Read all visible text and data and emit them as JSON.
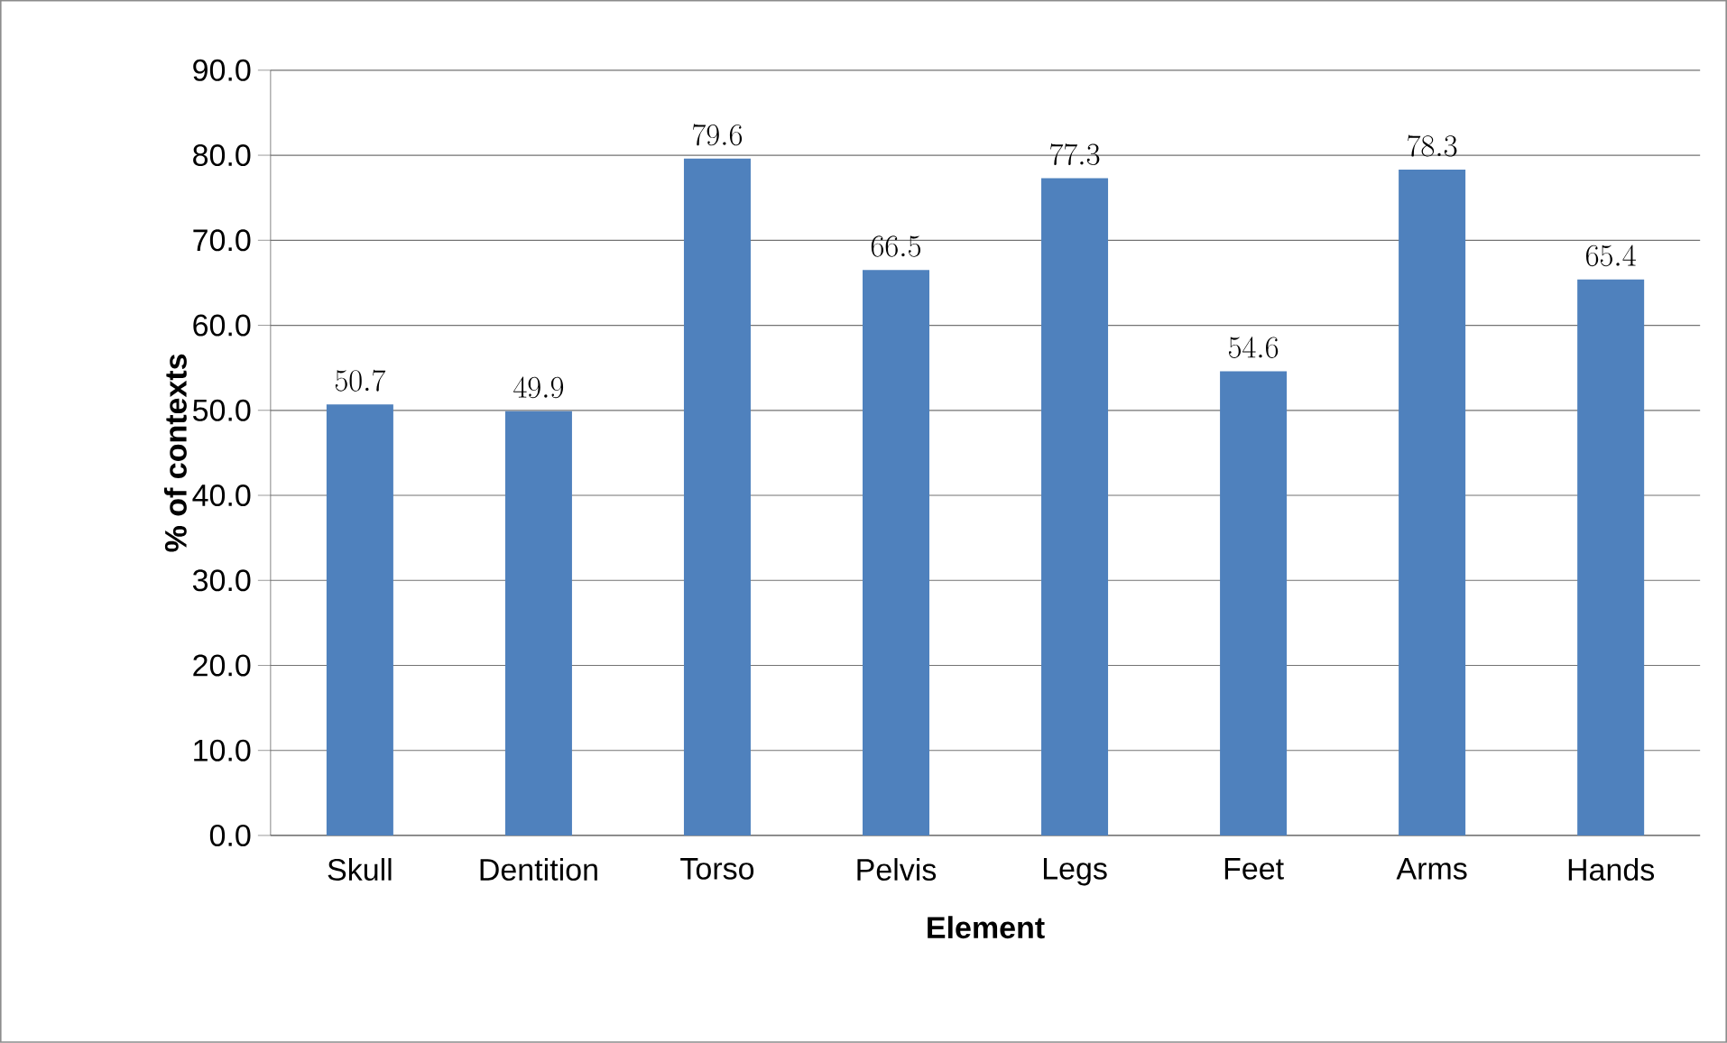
{
  "chart_data": {
    "type": "bar",
    "xlabel": "Element",
    "ylabel": "% of contexts",
    "categories": [
      "Skull",
      "Dentition",
      "Torso",
      "Pelvis",
      "Legs",
      "Feet",
      "Arms",
      "Hands"
    ],
    "values": [
      50.7,
      49.9,
      79.6,
      66.5,
      77.3,
      54.6,
      78.3,
      65.4
    ],
    "color": "#4f81bd",
    "ylim": [
      0,
      90
    ],
    "yticks": [
      {
        "value": 0,
        "label": "0.0"
      },
      {
        "value": 10,
        "label": "10.0"
      },
      {
        "value": 20,
        "label": "20.0"
      },
      {
        "value": 30,
        "label": "30.0"
      },
      {
        "value": 40,
        "label": "40.0"
      },
      {
        "value": 50,
        "label": "50.0"
      },
      {
        "value": 60,
        "label": "60.0"
      },
      {
        "value": 70,
        "label": "70.0"
      },
      {
        "value": 80,
        "label": "80.0"
      },
      {
        "value": 90,
        "label": "90.0"
      }
    ],
    "grid": "y",
    "data_labels": true
  }
}
